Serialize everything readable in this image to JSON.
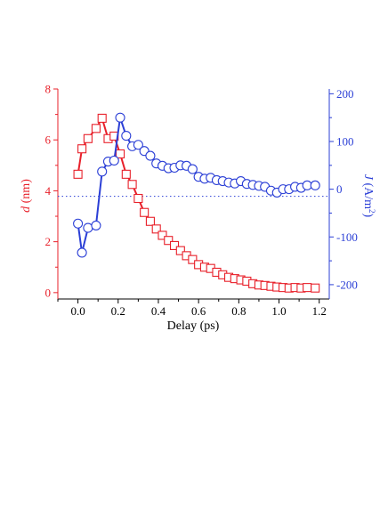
{
  "chart_data": {
    "type": "line",
    "x": [
      0.0,
      0.02,
      0.05,
      0.09,
      0.12,
      0.15,
      0.18,
      0.21,
      0.24,
      0.27,
      0.3,
      0.33,
      0.36,
      0.39,
      0.42,
      0.45,
      0.48,
      0.51,
      0.54,
      0.57,
      0.6,
      0.63,
      0.66,
      0.69,
      0.72,
      0.75,
      0.78,
      0.81,
      0.84,
      0.87,
      0.9,
      0.93,
      0.96,
      0.99,
      1.02,
      1.05,
      1.08,
      1.11,
      1.14,
      1.18
    ],
    "series": [
      {
        "axis": "left",
        "marker": "square",
        "color": "#e8202a",
        "values": [
          4.65,
          5.65,
          6.05,
          6.45,
          6.85,
          6.05,
          6.15,
          5.45,
          4.65,
          4.25,
          3.7,
          3.15,
          2.8,
          2.5,
          2.25,
          2.05,
          1.85,
          1.65,
          1.45,
          1.3,
          1.1,
          1.0,
          0.95,
          0.8,
          0.7,
          0.6,
          0.55,
          0.5,
          0.45,
          0.35,
          0.3,
          0.28,
          0.25,
          0.22,
          0.2,
          0.18,
          0.2,
          0.18,
          0.2,
          0.18
        ]
      },
      {
        "axis": "right",
        "marker": "circle",
        "color": "#2b3fd6",
        "values": [
          -72,
          -133,
          -81,
          -76,
          37,
          58,
          60,
          150,
          112,
          90,
          93,
          80,
          70,
          54,
          49,
          44,
          45,
          50,
          49,
          42,
          26,
          22,
          24,
          19,
          17,
          14,
          12,
          17,
          11,
          9,
          7,
          5,
          -3,
          -7,
          0,
          0,
          5,
          3,
          8,
          8
        ]
      }
    ],
    "xlabel": "Delay (ps)",
    "ylabel_left_italic": "d",
    "ylabel_left_unit": " (nm)",
    "ylabel_right_italic": "J",
    "ylabel_right_unit": " (A/m",
    "ylabel_right_sup": "2",
    "ylabel_right_close": ")",
    "xlim": [
      -0.1,
      1.25
    ],
    "ylim_left": [
      -0.25,
      8.0
    ],
    "ylim_right": [
      -230,
      210
    ],
    "xticks": [
      "0.0",
      "0.2",
      "0.4",
      "0.6",
      "0.8",
      "1.0",
      "1.2"
    ],
    "yticks_left": [
      "0",
      "2",
      "4",
      "6",
      "8"
    ],
    "yticks_right": [
      "-200",
      "-100",
      "0",
      "100",
      "200"
    ],
    "reference_line_right": -15,
    "grid": false,
    "colors": {
      "left_axis": "#e8202a",
      "right_axis": "#2b3fd6",
      "frame": "#000000"
    }
  }
}
